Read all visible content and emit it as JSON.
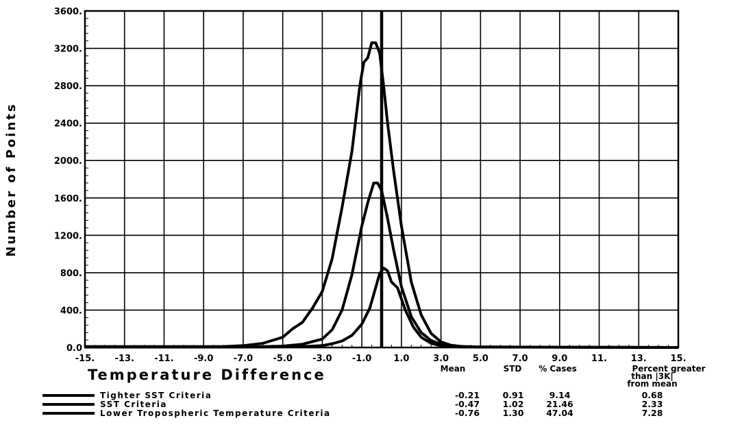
{
  "chart_data": {
    "type": "line",
    "xlabel": "Temperature Difference",
    "ylabel": "Number of Points",
    "xlim": [
      -15,
      15
    ],
    "ylim": [
      0,
      3600
    ],
    "x_ticks": [
      -15,
      -13,
      -11,
      -9,
      -7,
      -5,
      -3,
      -1,
      1,
      3,
      5,
      7,
      9,
      11,
      13,
      15
    ],
    "x_tick_labels": [
      "-15.",
      "-13.",
      "-11.",
      "-9.0",
      "-7.0",
      "-5.0",
      "-3.0",
      "-1.0",
      "1.0",
      "3.0",
      "5.0",
      "7.0",
      "9.0",
      "11.",
      "13.",
      "15."
    ],
    "y_ticks": [
      0,
      400,
      800,
      1200,
      1600,
      2000,
      2400,
      2800,
      3200,
      3600
    ],
    "y_tick_labels": [
      "0.0",
      "400.",
      "800.",
      "1200.",
      "1600.",
      "2000.",
      "2400.",
      "2800.",
      "3200.",
      "3600."
    ],
    "grid": true,
    "reference_line_x": 0,
    "series": [
      {
        "name": "Tighter SST Criteria",
        "x": [
          -15,
          -6,
          -4,
          -3,
          -2.5,
          -2,
          -1.5,
          -1,
          -0.6,
          -0.3,
          -0.1,
          0.1,
          0.3,
          0.5,
          0.8,
          1.2,
          1.6,
          2,
          2.5,
          3,
          4,
          15
        ],
        "y": [
          5,
          5,
          10,
          20,
          40,
          70,
          130,
          250,
          420,
          640,
          790,
          850,
          820,
          700,
          640,
          400,
          220,
          110,
          45,
          20,
          5,
          0
        ]
      },
      {
        "name": "SST Criteria",
        "x": [
          -15,
          -7,
          -5,
          -4,
          -3,
          -2.5,
          -2,
          -1.5,
          -1,
          -0.7,
          -0.4,
          -0.2,
          0,
          0.3,
          0.6,
          1,
          1.5,
          2,
          2.5,
          3,
          3.5,
          4,
          5,
          15
        ],
        "y": [
          5,
          5,
          15,
          35,
          90,
          190,
          400,
          780,
          1300,
          1550,
          1760,
          1760,
          1680,
          1380,
          1050,
          650,
          330,
          160,
          75,
          35,
          15,
          8,
          5,
          0
        ]
      },
      {
        "name": "Lower Tropospheric Temperature Criteria",
        "x": [
          -15,
          -8,
          -7,
          -6,
          -5,
          -4.5,
          -4,
          -3.5,
          -3,
          -2.5,
          -2,
          -1.5,
          -1.1,
          -0.9,
          -0.7,
          -0.5,
          -0.3,
          -0.1,
          0.1,
          0.3,
          0.6,
          1,
          1.5,
          2,
          2.5,
          3,
          3.5,
          4,
          5,
          15
        ],
        "y": [
          10,
          10,
          20,
          45,
          110,
          200,
          270,
          420,
          600,
          950,
          1500,
          2100,
          2800,
          3050,
          3100,
          3260,
          3260,
          3150,
          2800,
          2400,
          1900,
          1300,
          700,
          350,
          150,
          60,
          25,
          12,
          6,
          0
        ]
      }
    ]
  },
  "stats_table": {
    "headers": [
      "Mean",
      "STD",
      "% Cases",
      "Percent greater",
      "than |3K|",
      "from mean"
    ],
    "rows": [
      {
        "label": "Tighter SST Criteria",
        "mean": "-0.21",
        "std": "0.91",
        "cases": "9.14",
        "percent": "0.68"
      },
      {
        "label": "SST Criteria",
        "mean": "-0.47",
        "std": "1.02",
        "cases": "21.46",
        "percent": "2.33"
      },
      {
        "label": "Lower Tropospheric Temperature Criteria",
        "mean": "-0.76",
        "std": "1.30",
        "cases": "47.04",
        "percent": "7.28"
      }
    ]
  },
  "colors": {
    "line": "#000000",
    "grid": "#000000",
    "background": "#ffffff"
  }
}
